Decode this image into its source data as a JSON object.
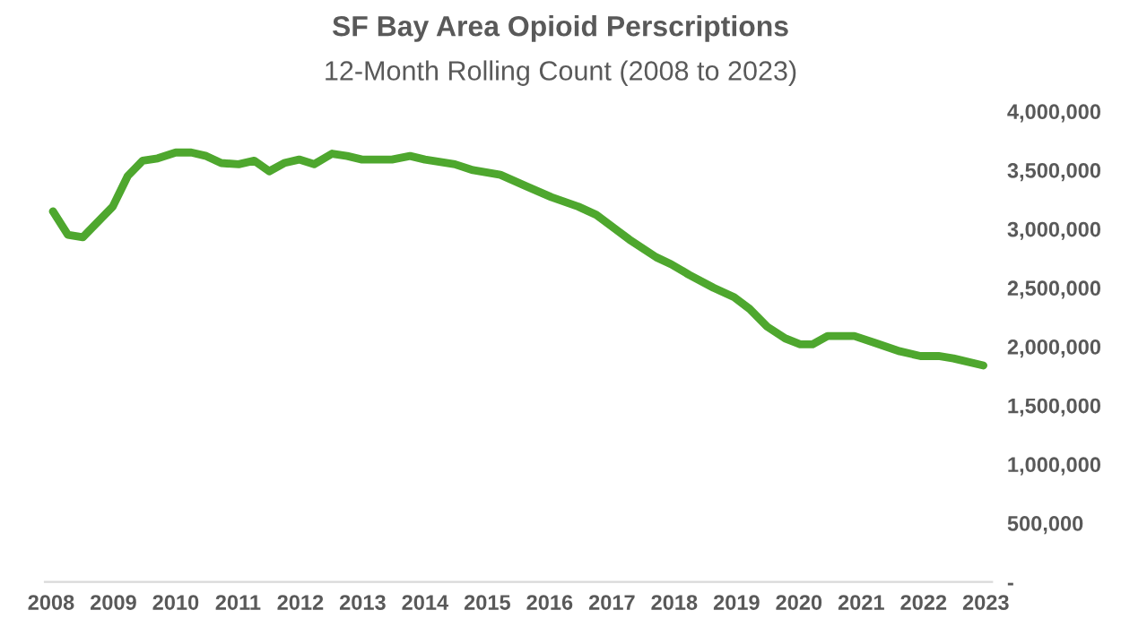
{
  "chart_data": {
    "type": "line",
    "title": "SF Bay Area Opioid Perscriptions",
    "subtitle": "12-Month Rolling Count (2008 to 2023)",
    "x": [
      2008.03,
      2008.27,
      2008.51,
      2008.99,
      2009.23,
      2009.47,
      2009.71,
      2010.0,
      2010.25,
      2010.49,
      2010.73,
      2011.01,
      2011.26,
      2011.5,
      2011.74,
      2011.98,
      2012.22,
      2012.51,
      2012.75,
      2012.99,
      2013.47,
      2013.76,
      2014.0,
      2014.48,
      2014.77,
      2015.21,
      2015.64,
      2016.03,
      2016.46,
      2016.75,
      2017.28,
      2017.71,
      2017.95,
      2018.24,
      2018.63,
      2018.96,
      2019.21,
      2019.49,
      2019.78,
      2020.02,
      2020.22,
      2020.46,
      2020.89,
      2021.23,
      2021.62,
      2021.95,
      2022.24,
      2022.48,
      2022.96
    ],
    "series": [
      {
        "color": "#4ea72e",
        "values": [
          3150000,
          2950000,
          2930000,
          3190000,
          3450000,
          3580000,
          3600000,
          3650000,
          3650000,
          3620000,
          3560000,
          3550000,
          3580000,
          3490000,
          3560000,
          3590000,
          3550000,
          3640000,
          3620000,
          3590000,
          3590000,
          3620000,
          3590000,
          3550000,
          3500000,
          3460000,
          3360000,
          3270000,
          3190000,
          3120000,
          2910000,
          2760000,
          2700000,
          2610000,
          2500000,
          2420000,
          2320000,
          2170000,
          2070000,
          2020000,
          2020000,
          2090000,
          2090000,
          2030000,
          1960000,
          1920000,
          1920000,
          1900000,
          1840000
        ]
      }
    ],
    "xlim": [
      2007.9,
      2023.1
    ],
    "xticks": [
      2008,
      2009,
      2010,
      2011,
      2012,
      2013,
      2014,
      2015,
      2016,
      2017,
      2018,
      2019,
      2020,
      2021,
      2022,
      2023
    ],
    "ylim": [
      0,
      4000000
    ],
    "yticks": [
      {
        "value": 0,
        "label": "-"
      },
      {
        "value": 500000,
        "label": "500,000"
      },
      {
        "value": 1000000,
        "label": "1,000,000"
      },
      {
        "value": 1500000,
        "label": "1,500,000"
      },
      {
        "value": 2000000,
        "label": "2,000,000"
      },
      {
        "value": 2500000,
        "label": "2,500,000"
      },
      {
        "value": 3000000,
        "label": "3,000,000"
      },
      {
        "value": 3500000,
        "label": "3,500,000"
      },
      {
        "value": 4000000,
        "label": "4,000,000"
      }
    ],
    "grid": false,
    "legend": false,
    "marker": "none",
    "line_style": "solid"
  }
}
